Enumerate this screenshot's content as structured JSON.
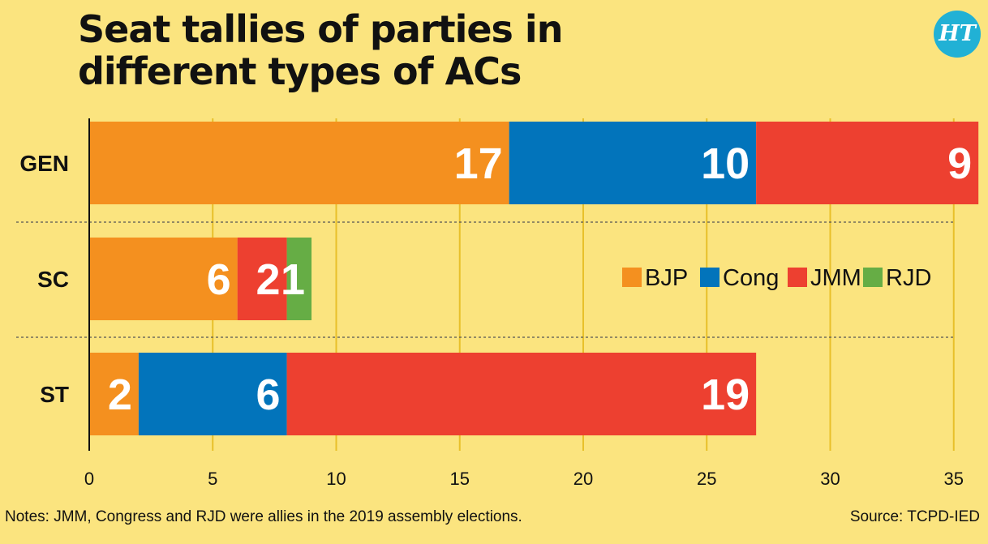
{
  "title": "Seat tallies of parties in different types of ACs",
  "logo": "HT",
  "note": "Notes: JMM, Congress and RJD were allies in the 2019 assembly elections.",
  "source": "Source: TCPD-IED",
  "colors": {
    "BJP": "#f4901f",
    "Cong": "#0274bb",
    "JMM": "#ed4030",
    "RJD": "#66ad45",
    "background": "#fbe47f",
    "grid": "#e8c02a"
  },
  "chart_data": {
    "type": "bar",
    "orientation": "horizontal",
    "stacked": true,
    "categories": [
      "GEN",
      "SC",
      "ST"
    ],
    "series": [
      {
        "name": "BJP",
        "values": [
          17,
          6,
          2
        ]
      },
      {
        "name": "Cong",
        "values": [
          10,
          0,
          6
        ]
      },
      {
        "name": "JMM",
        "values": [
          9,
          2,
          19
        ]
      },
      {
        "name": "RJD",
        "values": [
          0,
          1,
          0
        ]
      }
    ],
    "xticks": [
      0,
      5,
      10,
      15,
      20,
      25,
      30,
      35
    ],
    "xlim": [
      0,
      36
    ],
    "grid": true,
    "legend_position": "right, beside SC row"
  }
}
